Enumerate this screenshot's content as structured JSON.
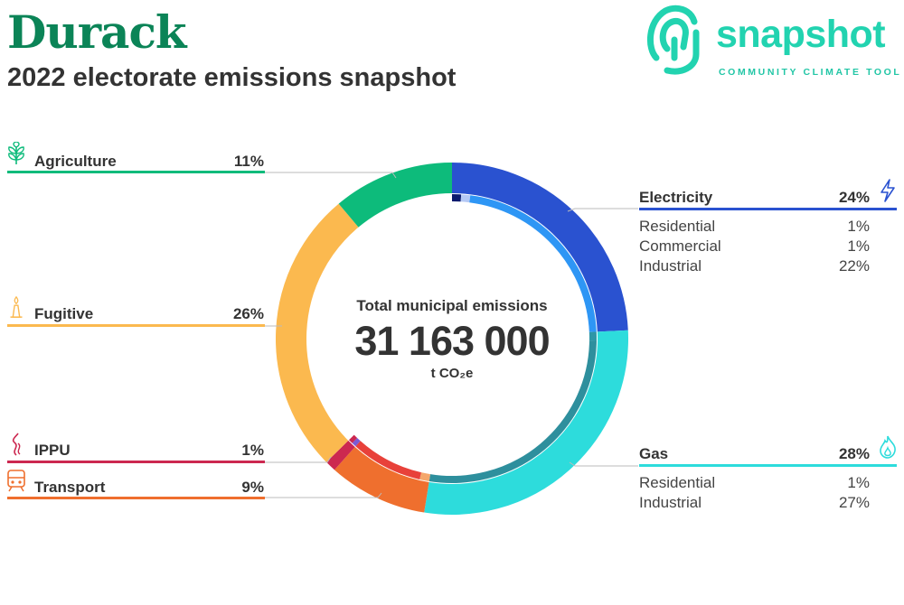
{
  "header": {
    "title": "Durack",
    "subtitle": "2022 electorate emissions snapshot"
  },
  "logo": {
    "wordmark": "snapshot",
    "tagline": "COMMUNITY CLIMATE TOOL",
    "color": "#22d3b0",
    "icon": "snapshot-logo-icon"
  },
  "center": {
    "label": "Total municipal emissions",
    "value": "31 163 000",
    "unit": "t CO₂e"
  },
  "colors": {
    "agriculture": "#0dbb7b",
    "fugitive": "#fbb94f",
    "ippu": "#cc2850",
    "transport": "#ef6f2e",
    "electricity": "#2a52d0",
    "gas": "#2ddcdc"
  },
  "chart_data": {
    "type": "pie",
    "donut": true,
    "total": "31 163 000",
    "unit": "t CO₂e",
    "sectors": [
      {
        "name": "Electricity",
        "pct": "24%",
        "value": 24,
        "color": "#2a52d0",
        "icon": "lightning-icon",
        "sub": [
          {
            "name": "Residential",
            "pct": "1%",
            "value": 1,
            "color": "#0b1a6e"
          },
          {
            "name": "Commercial",
            "pct": "1%",
            "value": 1,
            "color": "#b5c9f5"
          },
          {
            "name": "Industrial",
            "pct": "22%",
            "value": 22,
            "color": "#2e96f5"
          }
        ]
      },
      {
        "name": "Gas",
        "pct": "28%",
        "value": 28,
        "color": "#2ddcdc",
        "icon": "flame-icon",
        "sub": [
          {
            "name": "Residential",
            "pct": "1%",
            "value": 1,
            "color": "#2e96a6"
          },
          {
            "name": "Industrial",
            "pct": "27%",
            "value": 27,
            "color": "#2e8f9d"
          }
        ]
      },
      {
        "name": "Transport",
        "pct": "9%",
        "value": 9,
        "color": "#ef6f2e",
        "icon": "train-icon",
        "sub": [
          {
            "name": "",
            "value": 1,
            "color": "#f5a76b"
          },
          {
            "name": "",
            "value": 7.5,
            "color": "#e8413a"
          }
        ]
      },
      {
        "name": "IPPU",
        "pct": "1%",
        "value": 1,
        "color": "#cc2850",
        "icon": "smoke-icon",
        "sub": [
          {
            "name": "",
            "value": 0.5,
            "color": "#7b5ad4"
          },
          {
            "name": "",
            "value": 0.5,
            "color": "#cc2850"
          }
        ]
      },
      {
        "name": "Fugitive",
        "pct": "26%",
        "value": 26,
        "color": "#fbb94f",
        "icon": "gas-flare-icon",
        "sub": []
      },
      {
        "name": "Agriculture",
        "pct": "11%",
        "value": 11,
        "color": "#0dbb7b",
        "icon": "wheat-icon",
        "sub": []
      }
    ],
    "extra_segments": [
      {
        "after": "IPPU",
        "value": 1.2,
        "color": "#d42a48"
      }
    ]
  }
}
